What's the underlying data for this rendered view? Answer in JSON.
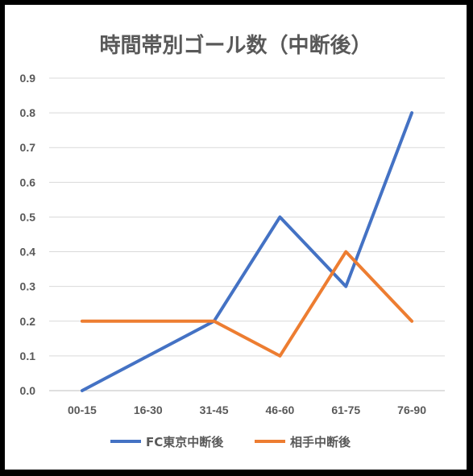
{
  "chart_data": {
    "type": "line",
    "title": "時間帯別ゴール数（中断後）",
    "xlabel": "",
    "ylabel": "",
    "categories": [
      "00-15",
      "16-30",
      "31-45",
      "46-60",
      "61-75",
      "76-90"
    ],
    "ylim": [
      0,
      0.9
    ],
    "yticks": [
      "0.0",
      "0.1",
      "0.2",
      "0.3",
      "0.4",
      "0.5",
      "0.6",
      "0.7",
      "0.8",
      "0.9"
    ],
    "grid": true,
    "legend_position": "bottom",
    "series": [
      {
        "name": "FC東京中断後",
        "color": "#4472C4",
        "values": [
          0.0,
          0.1,
          0.2,
          0.5,
          0.3,
          0.8
        ]
      },
      {
        "name": "相手中断後",
        "color": "#ED7D31",
        "values": [
          0.2,
          0.2,
          0.2,
          0.1,
          0.4,
          0.2
        ]
      }
    ]
  }
}
